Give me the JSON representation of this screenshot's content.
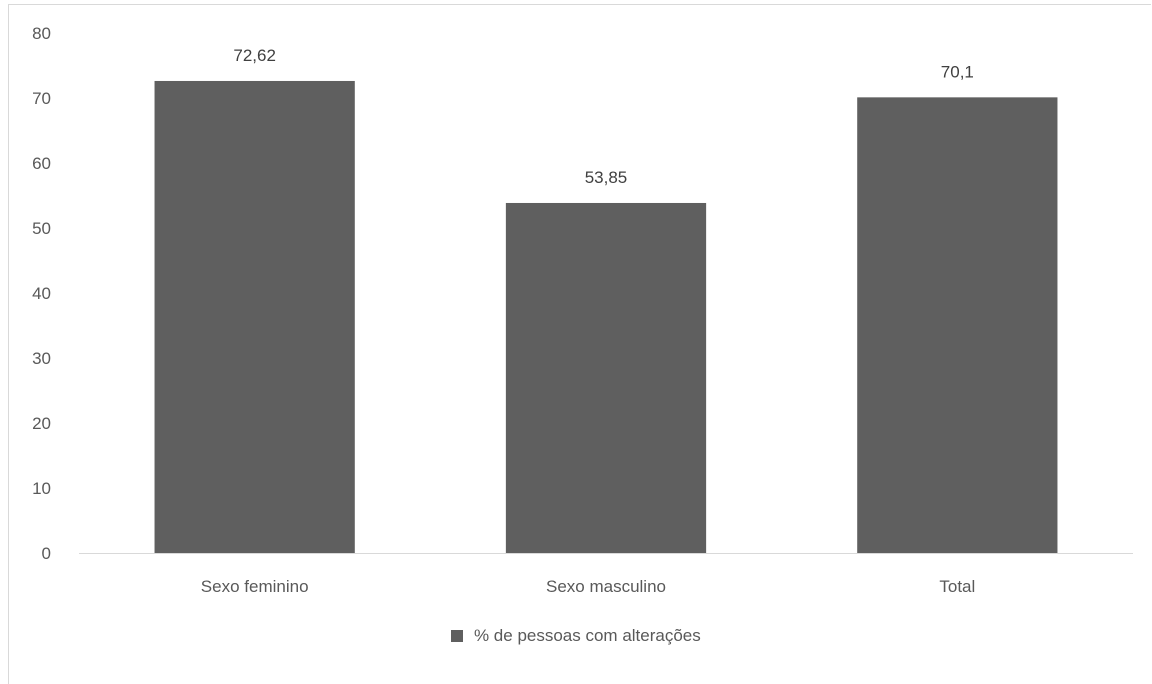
{
  "chart_data": {
    "type": "bar",
    "title": "",
    "xlabel": "",
    "ylabel": "",
    "categories": [
      "Sexo feminino",
      "Sexo masculino",
      "Total"
    ],
    "series": [
      {
        "name": "% de pessoas com alterações",
        "values": [
          72.62,
          53.85,
          70.1
        ],
        "labels": [
          "72,62",
          "53,85",
          "70,1"
        ],
        "color": "#5f5f5f"
      }
    ],
    "ylim": [
      0,
      80
    ],
    "yticks": [
      0,
      10,
      20,
      30,
      40,
      50,
      60,
      70,
      80
    ],
    "grid": false,
    "legend_position": "bottom"
  },
  "colors": {
    "bar": "#5f5f5f",
    "axis": "#d9d9d9",
    "text": "#595959"
  }
}
